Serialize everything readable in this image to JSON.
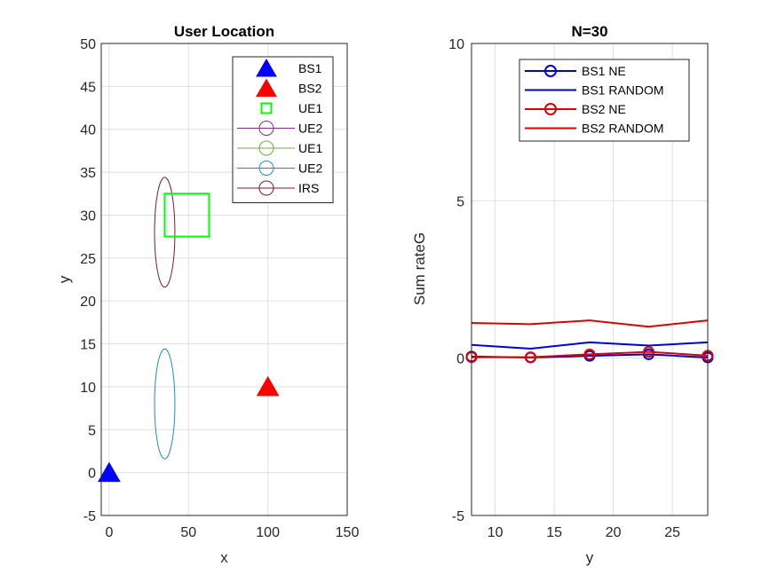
{
  "colors": {
    "bs1": "#0000ff",
    "bs2": "#ff0000",
    "ue1_square": "#00ff00",
    "ue2_legend": "#7e2f8e",
    "ue1_legend": "#77ac30",
    "ue2_circle": "#1f8fbf",
    "irs": "#7a1d35",
    "ne_bs1": "#0000cc",
    "random_bs1": "#0000cc",
    "ne_bs2": "#dd0000",
    "random_bs2": "#dd0000"
  },
  "chart_data": [
    {
      "type": "scatter",
      "title": "User Location",
      "xlabel": "x",
      "ylabel": "y",
      "xlim": [
        -5,
        150
      ],
      "ylim": [
        -5,
        50
      ],
      "xticks": [
        0,
        50,
        100,
        150
      ],
      "yticks": [
        -5,
        0,
        5,
        10,
        15,
        20,
        25,
        30,
        35,
        40,
        45,
        50
      ],
      "grid": true,
      "legend_position": "top-right",
      "legend": [
        {
          "label": "BS1",
          "marker": "triangle",
          "color": "#0000ff",
          "filled": true
        },
        {
          "label": "BS2",
          "marker": "triangle",
          "color": "#ff0000",
          "filled": true
        },
        {
          "label": "UE1",
          "marker": "square",
          "color": "#00ff00",
          "filled": false
        },
        {
          "label": "UE2",
          "marker": "circle-line",
          "color": "#7e2f8e",
          "filled": false
        },
        {
          "label": "UE1",
          "marker": "circle-line",
          "color": "#77ac30",
          "filled": false
        },
        {
          "label": "UE2",
          "marker": "circle-line",
          "color": "#1f8fbf",
          "filled": false
        },
        {
          "label": "IRS",
          "marker": "circle-line",
          "color": "#7a1d35",
          "filled": false
        }
      ],
      "points": [
        {
          "name": "BS1",
          "x": 0,
          "y": 0
        },
        {
          "name": "BS2",
          "x": 100,
          "y": 10
        }
      ],
      "square": {
        "x": [
          35,
          63
        ],
        "y": [
          27.5,
          32.5
        ]
      },
      "circles": [
        {
          "name": "IRS",
          "cx": 35,
          "cy": 28,
          "r": 6.4
        },
        {
          "name": "UE2",
          "cx": 35,
          "cy": 8,
          "r": 6.4
        }
      ]
    },
    {
      "type": "line",
      "title": "N=30",
      "xlabel": "y",
      "ylabel": "Sum rateG",
      "xlim": [
        8,
        28
      ],
      "ylim": [
        -5,
        10
      ],
      "xticks": [
        10,
        15,
        20,
        25
      ],
      "yticks": [
        -5,
        0,
        5,
        10
      ],
      "grid": true,
      "legend_position": "top-right",
      "x": [
        8,
        13,
        18,
        23,
        28
      ],
      "series": [
        {
          "name": "BS1 NE",
          "values": [
            0.05,
            0.02,
            0.07,
            0.12,
            0.02
          ],
          "marker": "circle",
          "color": "#0000cc"
        },
        {
          "name": "BS1 RANDOM",
          "values": [
            0.42,
            0.3,
            0.5,
            0.4,
            0.5
          ],
          "marker": "none",
          "color": "#0000cc"
        },
        {
          "name": "BS2 NE",
          "values": [
            0.03,
            0.03,
            0.12,
            0.2,
            0.08
          ],
          "marker": "circle",
          "color": "#dd0000"
        },
        {
          "name": "BS2 RANDOM",
          "values": [
            1.12,
            1.08,
            1.2,
            1.0,
            1.2
          ],
          "marker": "none",
          "color": "#dd0000"
        }
      ]
    }
  ]
}
